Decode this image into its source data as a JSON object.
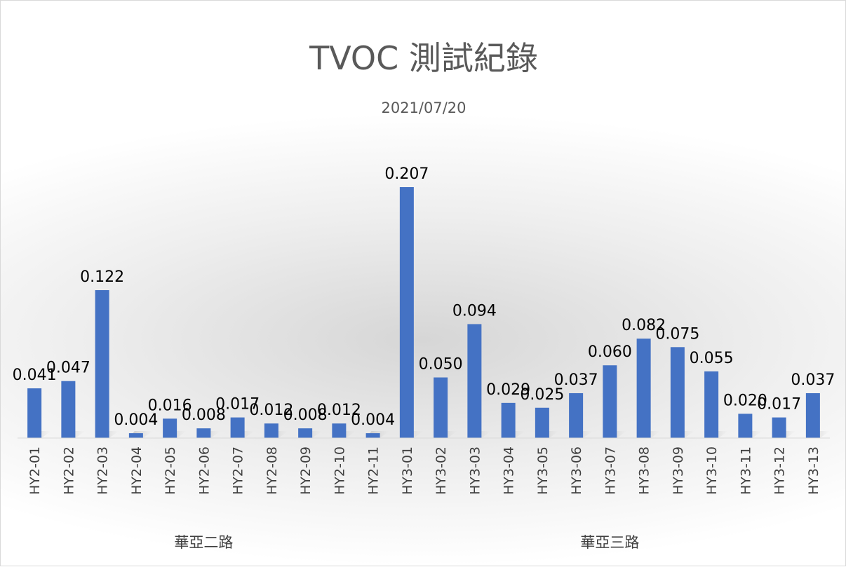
{
  "chart_data": {
    "type": "bar",
    "title": "TVOC 測試紀錄",
    "subtitle": "2021/07/20",
    "categories": [
      "HY2-01",
      "HY2-02",
      "HY2-03",
      "HY2-04",
      "HY2-05",
      "HY2-06",
      "HY2-07",
      "HY2-08",
      "HY2-09",
      "HY2-10",
      "HY2-11",
      "HY3-01",
      "HY3-02",
      "HY3-03",
      "HY3-04",
      "HY3-05",
      "HY3-06",
      "HY3-07",
      "HY3-08",
      "HY3-09",
      "HY3-10",
      "HY3-11",
      "HY3-12",
      "HY3-13"
    ],
    "series": [
      {
        "values": [
          0.041,
          0.047,
          0.122,
          0.004,
          0.016,
          0.008,
          0.017,
          0.012,
          0.008,
          0.012,
          0.004,
          0.207,
          0.05,
          0.094,
          0.029,
          0.025,
          0.037,
          0.06,
          0.082,
          0.075,
          0.055,
          0.02,
          0.017,
          0.037
        ],
        "labels": [
          "0.041",
          "0.047",
          "0.122",
          "0.004",
          "0.016",
          "0.008",
          "0.017",
          "0.012",
          "0.008",
          "0.012",
          "0.004",
          "0.207",
          "0.050",
          "0.094",
          "0.029",
          "0.025",
          "0.037",
          "0.060",
          "0.082",
          "0.075",
          "0.055",
          "0.020",
          "0.017",
          "0.037"
        ],
        "color": "#4472C4"
      }
    ],
    "groups": [
      {
        "label": "華亞二路",
        "count": 11
      },
      {
        "label": "華亞三路",
        "count": 13
      }
    ],
    "ylim": [
      0,
      0.207
    ],
    "grid": false,
    "legend": "none"
  }
}
